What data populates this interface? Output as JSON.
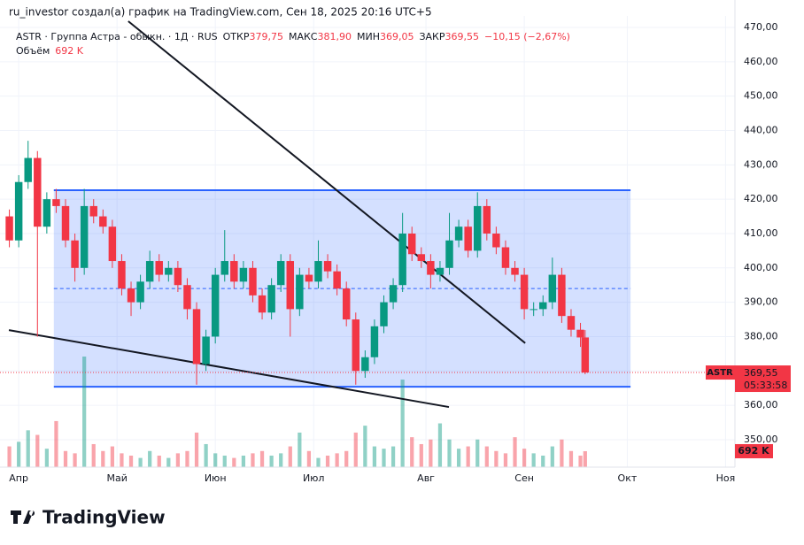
{
  "chart_data": {
    "type": "candlestick",
    "header": "ru_investor создал(а) график на TradingView.com, Сен 18, 2025 20:16 UTC+5",
    "symbol_line": "ASTR · Группа Астра - обыкн. · 1Д · RUS",
    "info": [
      {
        "label": "ОТКР",
        "value": 379.75,
        "text": "379,75"
      },
      {
        "label": "МАКС",
        "value": 381.9,
        "text": "381,90"
      },
      {
        "label": "МИН",
        "value": 369.05,
        "text": "369,05"
      },
      {
        "label": "ЗАКР",
        "value": 369.55,
        "text": "369,55"
      }
    ],
    "change": {
      "value": -10.15,
      "percent": -2.67,
      "text": "−10,15 (−2,67%)"
    },
    "volume_title": "Объём",
    "volume_last": {
      "value": 692,
      "label": "692 K"
    },
    "price_tag": {
      "symbol": "ASTR",
      "value": 369.55,
      "label": "369,55",
      "timer": "05:33:58"
    },
    "brand": "TradingView",
    "up_color": "#089981",
    "down_color": "#f23645",
    "drawing_color": "#2962ff",
    "xlim": [
      -4,
      153
    ],
    "ylim": [
      342,
      473.35
    ],
    "xticks": [
      {
        "value": 0,
        "label": "Апр"
      },
      {
        "value": 21,
        "label": "Май"
      },
      {
        "value": 42,
        "label": "Июн"
      },
      {
        "value": 63,
        "label": "Июл"
      },
      {
        "value": 87,
        "label": "Авг"
      },
      {
        "value": 108,
        "label": "Сен"
      },
      {
        "value": 130,
        "label": "Окт"
      },
      {
        "value": 151,
        "label": "Ноя"
      }
    ],
    "yticks": [
      {
        "value": 350,
        "label": "350,00"
      },
      {
        "value": 360,
        "label": "360,00"
      },
      {
        "value": 370,
        "label": "370,00"
      },
      {
        "value": 380,
        "label": "380,00"
      },
      {
        "value": 390,
        "label": "390,00"
      },
      {
        "value": 400,
        "label": "400,00"
      },
      {
        "value": 410,
        "label": "410,00"
      },
      {
        "value": 420,
        "label": "420,00"
      },
      {
        "value": 430,
        "label": "430,00"
      },
      {
        "value": 440,
        "label": "440,00"
      },
      {
        "value": 450,
        "label": "450,00"
      },
      {
        "value": 460,
        "label": "460,00"
      },
      {
        "value": 470,
        "label": "470,00"
      }
    ],
    "x": [
      -2,
      0,
      2,
      4,
      6,
      8,
      10,
      12,
      14,
      16,
      18,
      20,
      22,
      24,
      26,
      28,
      30,
      32,
      34,
      36,
      38,
      40,
      42,
      44,
      46,
      48,
      50,
      52,
      54,
      56,
      58,
      60,
      62,
      64,
      66,
      68,
      70,
      72,
      74,
      76,
      78,
      80,
      82,
      84,
      86,
      88,
      90,
      92,
      94,
      96,
      98,
      100,
      102,
      104,
      106,
      108,
      110,
      112,
      114,
      116,
      118,
      120,
      121
    ],
    "open": [
      415,
      408,
      425,
      432,
      412,
      420,
      418,
      408,
      400,
      418,
      415,
      412,
      402,
      394,
      390,
      396,
      402,
      398,
      400,
      395,
      388,
      372,
      380,
      398,
      402,
      396,
      400,
      392,
      387,
      395,
      402,
      388,
      398,
      396,
      402,
      399,
      394,
      385,
      370,
      374,
      383,
      390,
      395,
      410,
      404,
      402,
      398,
      400,
      408,
      412,
      405,
      418,
      410,
      406,
      400,
      398,
      388,
      388,
      390,
      398,
      386,
      382,
      379.75
    ],
    "high": [
      417,
      427,
      437,
      434,
      422,
      423,
      420,
      410,
      423,
      420,
      417,
      414,
      404,
      396,
      398,
      405,
      404,
      402,
      402,
      397,
      390,
      382,
      400,
      411,
      404,
      402,
      402,
      394,
      397,
      404,
      404,
      400,
      400,
      408,
      404,
      401,
      396,
      387,
      376,
      385,
      392,
      397,
      416,
      412,
      406,
      404,
      402,
      416,
      414,
      414,
      422,
      420,
      412,
      408,
      402,
      400,
      390,
      392,
      403,
      400,
      388,
      384,
      381.9
    ],
    "low": [
      406,
      406,
      423,
      380,
      410,
      416,
      406,
      396,
      398,
      413,
      410,
      400,
      392,
      386,
      388,
      394,
      396,
      396,
      393,
      385,
      366,
      370,
      378,
      396,
      394,
      394,
      390,
      385,
      385,
      393,
      380,
      386,
      394,
      394,
      397,
      392,
      383,
      366,
      368,
      372,
      381,
      388,
      393,
      402,
      400,
      394,
      396,
      398,
      406,
      403,
      403,
      408,
      404,
      398,
      396,
      385,
      386,
      386,
      388,
      384,
      380,
      377,
      369.05
    ],
    "close": [
      408,
      425,
      432,
      412,
      420,
      418,
      408,
      400,
      418,
      415,
      412,
      402,
      394,
      390,
      396,
      402,
      398,
      400,
      395,
      388,
      372,
      380,
      398,
      402,
      396,
      400,
      392,
      387,
      395,
      402,
      388,
      398,
      396,
      402,
      399,
      394,
      385,
      370,
      374,
      383,
      390,
      395,
      410,
      404,
      402,
      398,
      400,
      408,
      412,
      405,
      418,
      410,
      406,
      400,
      398,
      388,
      388,
      390,
      398,
      386,
      382,
      379.75,
      369.55
    ],
    "volume": [
      900,
      1100,
      1600,
      1400,
      800,
      2000,
      700,
      600,
      4800,
      1000,
      700,
      900,
      600,
      500,
      400,
      700,
      500,
      400,
      600,
      700,
      1500,
      1000,
      600,
      500,
      400,
      500,
      600,
      700,
      500,
      600,
      900,
      1500,
      700,
      400,
      500,
      600,
      700,
      1500,
      1800,
      900,
      800,
      900,
      3800,
      1300,
      1000,
      1200,
      1900,
      1200,
      800,
      900,
      1200,
      900,
      700,
      600,
      1300,
      800,
      600,
      500,
      900,
      1200,
      700,
      500,
      692
    ],
    "rectangle": {
      "x": [
        7.5,
        130.7
      ],
      "y": [
        365.4,
        422.6
      ]
    },
    "trend_lines": [
      {
        "x": [
          23.4,
          108.2
        ],
        "y": [
          471.8,
          378.1
        ]
      },
      {
        "x": [
          -2.1,
          91.9
        ],
        "y": [
          381.9,
          359.5
        ]
      }
    ]
  }
}
